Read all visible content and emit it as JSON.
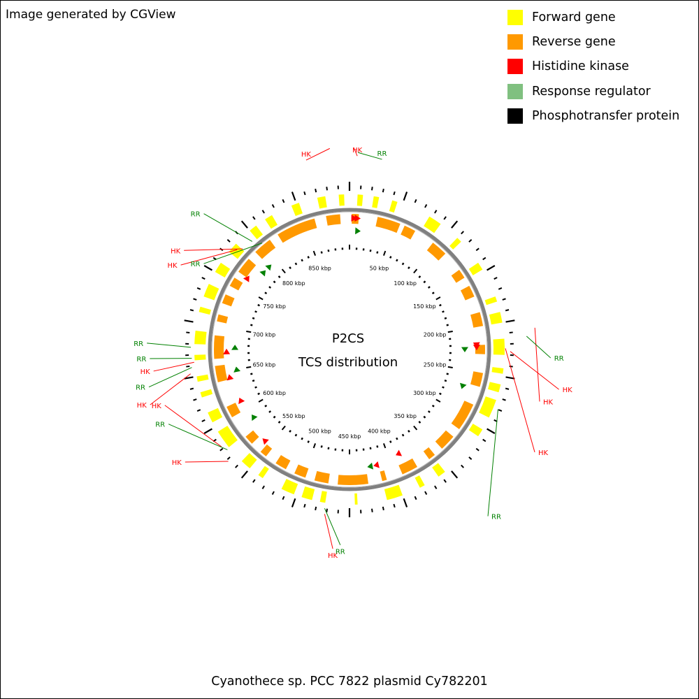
{
  "header_note": "Image generated by CGView",
  "legend": [
    {
      "label": "Forward gene",
      "color": "#ffff00"
    },
    {
      "label": "Reverse gene",
      "color": "#ff9900"
    },
    {
      "label": "Histidine kinase",
      "color": "#ff0000"
    },
    {
      "label": "Response regulator",
      "color": "#80c080"
    },
    {
      "label": "Phosphotransfer protein",
      "color": "#000000"
    }
  ],
  "center": {
    "line1": "P2CS",
    "line2": "TCS distribution"
  },
  "caption": "Cyanothece sp. PCC 7822 plasmid Cy782201",
  "scale_labels": [
    "50 kbp",
    "100 kbp",
    "150 kbp",
    "200 kbp",
    "250 kbp",
    "300 kbp",
    "350 kbp",
    "400 kbp",
    "450 kbp",
    "500 kbp",
    "550 kbp",
    "600 kbp",
    "650 kbp",
    "700 kbp",
    "750 kbp",
    "800 kbp",
    "850 kbp"
  ],
  "colors": {
    "forward": "#ffff00",
    "reverse": "#ff9900",
    "hk": "#ff0000",
    "rr": "#008000",
    "backbone": "#808080"
  },
  "feature_labels": [
    {
      "text": "HK",
      "type": "hk"
    },
    {
      "text": "HK",
      "type": "hk"
    },
    {
      "text": "RR",
      "type": "rr"
    },
    {
      "text": "HK",
      "type": "hk"
    },
    {
      "text": "RR",
      "type": "rr"
    },
    {
      "text": "HK",
      "type": "hk"
    },
    {
      "text": "HK",
      "type": "hk"
    },
    {
      "text": "RR",
      "type": "rr"
    },
    {
      "text": "HK",
      "type": "hk"
    },
    {
      "text": "RR",
      "type": "rr"
    },
    {
      "text": "HK",
      "type": "hk"
    },
    {
      "text": "HK",
      "type": "hk"
    },
    {
      "text": "RR",
      "type": "rr"
    },
    {
      "text": "HK",
      "type": "hk"
    },
    {
      "text": "RR",
      "type": "rr"
    },
    {
      "text": "HK",
      "type": "hk"
    },
    {
      "text": "RR",
      "type": "rr"
    },
    {
      "text": "RR",
      "type": "rr"
    },
    {
      "text": "HK",
      "type": "hk"
    },
    {
      "text": "HK",
      "type": "hk"
    },
    {
      "text": "RR",
      "type": "rr"
    },
    {
      "text": "RR",
      "type": "rr"
    }
  ]
}
